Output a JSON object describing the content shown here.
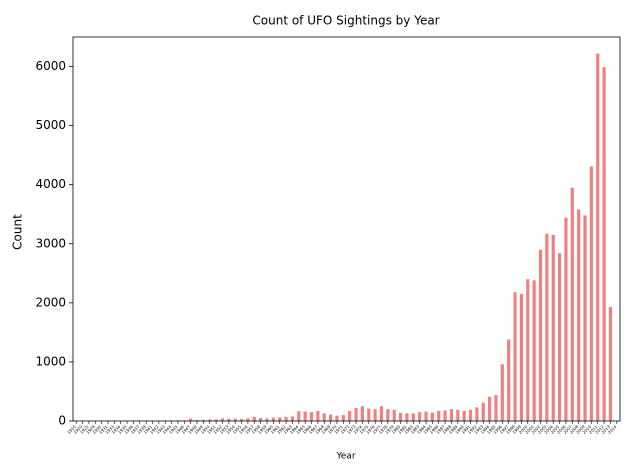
{
  "chart_data": {
    "type": "bar",
    "title": "Count of UFO Sightings by Year",
    "xlabel": "Year",
    "ylabel": "Count",
    "ylim": [
      0,
      6500
    ],
    "yticks": [
      0,
      1000,
      2000,
      3000,
      4000,
      5000,
      6000
    ],
    "bar_color": "#f08080",
    "grid": false,
    "categories": [
      "1910",
      "1920",
      "1925",
      "1929",
      "1930",
      "1931",
      "1933",
      "1934",
      "1935",
      "1936",
      "1937",
      "1939",
      "1941",
      "1942",
      "1943",
      "1944",
      "1945",
      "1946",
      "1947",
      "1948",
      "1949",
      "1950",
      "1951",
      "1952",
      "1953",
      "1954",
      "1955",
      "1956",
      "1957",
      "1958",
      "1959",
      "1960",
      "1961",
      "1962",
      "1963",
      "1964",
      "1965",
      "1966",
      "1967",
      "1968",
      "1969",
      "1970",
      "1971",
      "1972",
      "1973",
      "1974",
      "1975",
      "1976",
      "1977",
      "1978",
      "1979",
      "1980",
      "1981",
      "1982",
      "1983",
      "1984",
      "1985",
      "1986",
      "1987",
      "1988",
      "1989",
      "1990",
      "1991",
      "1992",
      "1993",
      "1994",
      "1995",
      "1996",
      "1997",
      "1998",
      "1999",
      "2000",
      "2001",
      "2002",
      "2003",
      "2004",
      "2005",
      "2006",
      "2007",
      "2008",
      "2009",
      "2010",
      "2011",
      "2012",
      "2013",
      "2014"
    ],
    "values": [
      2,
      1,
      1,
      1,
      2,
      2,
      1,
      1,
      1,
      2,
      2,
      3,
      2,
      2,
      5,
      6,
      9,
      10,
      40,
      15,
      20,
      28,
      25,
      45,
      40,
      40,
      35,
      45,
      70,
      50,
      45,
      55,
      60,
      70,
      75,
      165,
      160,
      150,
      170,
      130,
      110,
      90,
      100,
      170,
      220,
      250,
      210,
      200,
      250,
      200,
      190,
      140,
      130,
      130,
      150,
      160,
      140,
      170,
      180,
      200,
      190,
      170,
      190,
      230,
      310,
      410,
      440,
      960,
      1380,
      2180,
      2150,
      2400,
      2380,
      2900,
      3170,
      3150,
      2840,
      3440,
      3950,
      3580,
      3480,
      4310,
      6220,
      5990,
      1930,
      0
    ]
  }
}
